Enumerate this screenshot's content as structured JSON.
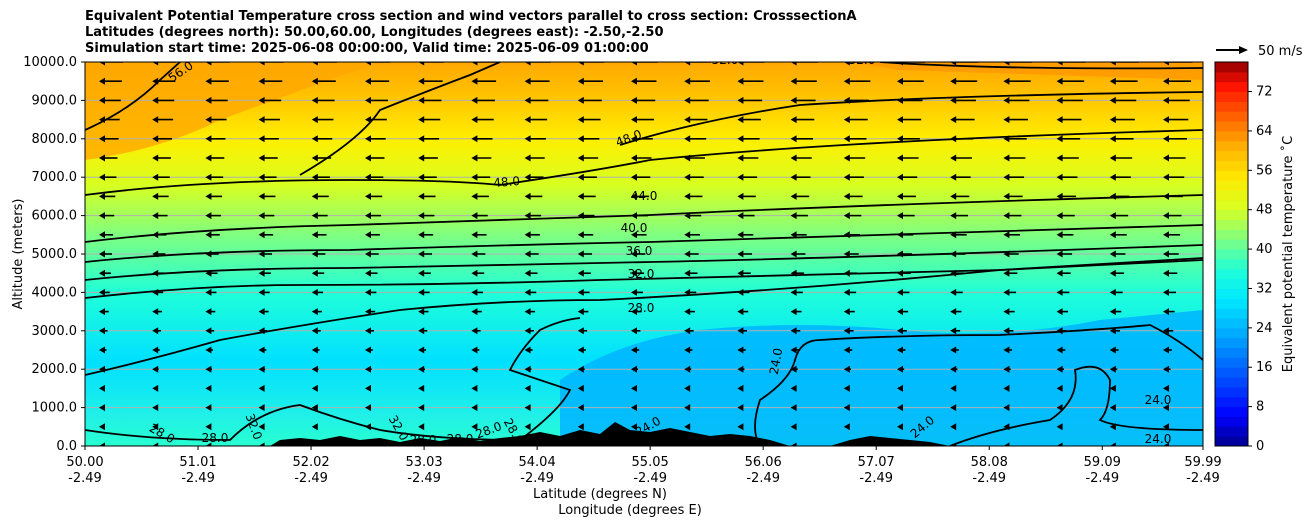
{
  "chart_data": {
    "type": "heatmap",
    "title_lines": [
      "Equivalent Potential Temperature cross section and wind vectors parallel to cross section: CrosssectionA",
      "Latitudes (degrees north): 50.00,60.00, Longitudes (degrees east): -2.50,-2.50",
      "Simulation start time: 2025-06-08 00:00:00, Valid time: 2025-06-09 01:00:00"
    ],
    "xlabel": "Latitude (degrees N)",
    "xlabel2": "Longitude (degrees E)",
    "ylabel": "Altitude (meters)",
    "xlim": [
      50.0,
      59.99
    ],
    "ylim": [
      0,
      10000
    ],
    "x_ticks": [
      {
        "lat": "50.00",
        "lon": "-2.49",
        "value": 50.0
      },
      {
        "lat": "51.01",
        "lon": "-2.49",
        "value": 51.01
      },
      {
        "lat": "52.02",
        "lon": "-2.49",
        "value": 52.02
      },
      {
        "lat": "53.03",
        "lon": "-2.49",
        "value": 53.03
      },
      {
        "lat": "54.04",
        "lon": "-2.49",
        "value": 54.04
      },
      {
        "lat": "55.05",
        "lon": "-2.49",
        "value": 55.05
      },
      {
        "lat": "56.06",
        "lon": "-2.49",
        "value": 56.06
      },
      {
        "lat": "57.07",
        "lon": "-2.49",
        "value": 57.07
      },
      {
        "lat": "58.08",
        "lon": "-2.49",
        "value": 58.08
      },
      {
        "lat": "59.09",
        "lon": "-2.49",
        "value": 59.09
      },
      {
        "lat": "59.99",
        "lon": "-2.49",
        "value": 59.99
      }
    ],
    "y_ticks": [
      "0.0",
      "1000.0",
      "2000.0",
      "3000.0",
      "4000.0",
      "5000.0",
      "6000.0",
      "7000.0",
      "8000.0",
      "9000.0",
      "10000.0"
    ],
    "colorbar": {
      "label": "Equivalent potential temperature ˚C",
      "ticks": [
        "0",
        "8",
        "16",
        "24",
        "32",
        "40",
        "48",
        "56",
        "64",
        "72"
      ],
      "range": [
        0,
        78
      ]
    },
    "quiver_key": "50 m/s",
    "contour_labels": [
      "56.0",
      "52.0",
      "52.0",
      "48.0",
      "48.0",
      "44.0",
      "40.0",
      "36.0",
      "32.0",
      "28.0",
      "24.0",
      "24.0",
      "24.0",
      "24.0",
      "32.0",
      "28.0",
      "28.0",
      "28.0",
      "28.0",
      "28.0",
      "28.0",
      "32.0",
      "24.0"
    ],
    "grid": true
  }
}
